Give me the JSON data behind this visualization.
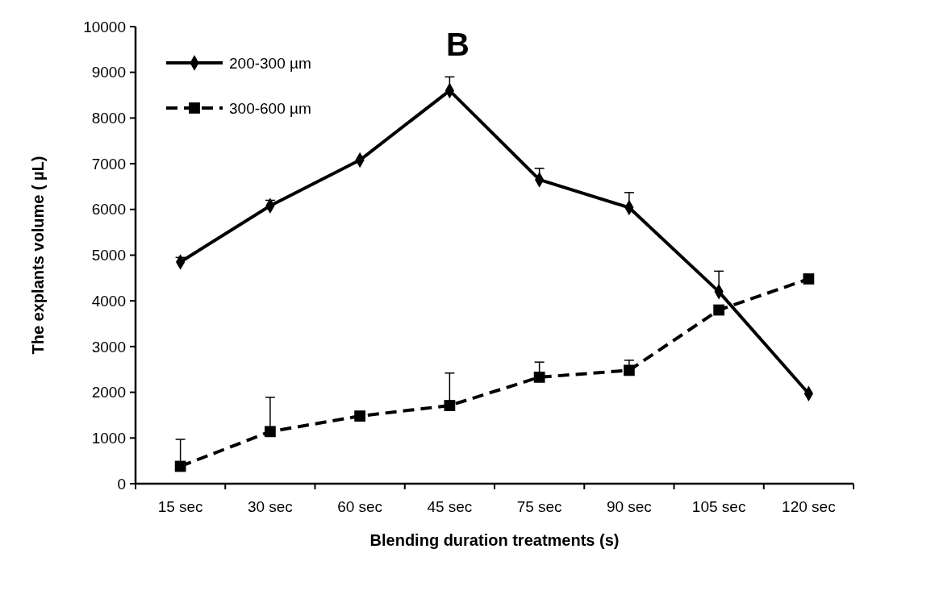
{
  "chart_data": {
    "type": "line",
    "title": "B",
    "xlabel": "Blending duration treatments (s)",
    "ylabel": "The explants volume ( µL)",
    "categories": [
      "15 sec",
      "30 sec",
      "60 sec",
      "45 sec",
      "75 sec",
      "90 sec",
      "105 sec",
      "120 sec"
    ],
    "ylim": [
      0,
      10000
    ],
    "yticks": [
      0,
      1000,
      2000,
      3000,
      4000,
      5000,
      6000,
      7000,
      8000,
      9000,
      10000
    ],
    "grid": false,
    "legend": "top left",
    "series": [
      {
        "name": "200-300 µm",
        "color": "#000000",
        "marker": "diamond",
        "line_style": "solid",
        "values": [
          4850,
          6080,
          7080,
          8600,
          6650,
          6040,
          4200,
          1970
        ],
        "errors": [
          [
            4850,
            4950
          ],
          [
            6080,
            6200
          ],
          null,
          [
            8600,
            8900
          ],
          [
            6650,
            6900
          ],
          [
            6040,
            6370
          ],
          [
            4200,
            4650
          ],
          null
        ]
      },
      {
        "name": "300-600 µm",
        "color": "#000000",
        "marker": "square",
        "line_style": "dashed",
        "values": [
          380,
          1140,
          1480,
          1710,
          2330,
          2480,
          3800,
          4480
        ],
        "errors": [
          [
            380,
            970
          ],
          [
            1140,
            1890
          ],
          null,
          [
            1710,
            2420
          ],
          [
            2330,
            2660
          ],
          [
            2480,
            2700
          ],
          null,
          null
        ]
      }
    ]
  }
}
